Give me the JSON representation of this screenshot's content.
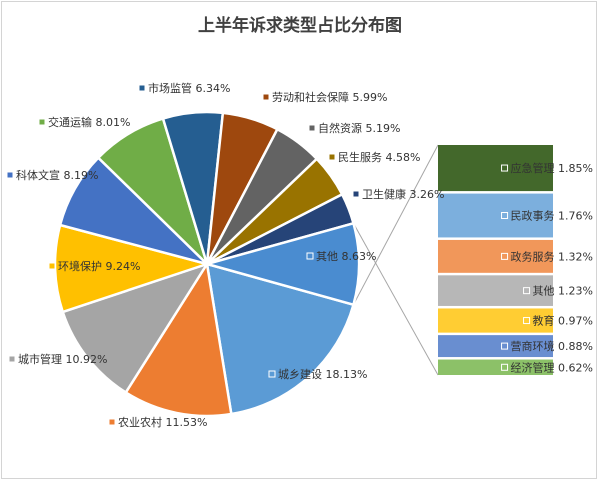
{
  "chart_data": {
    "type": "pie",
    "subtype": "bar-of-pie",
    "title": "上半年诉求类型占比分布图",
    "legend_placement": "labels on slices",
    "slices": [
      {
        "label": "城乡建设",
        "percent_text": "18.13%",
        "value": 18.13,
        "color": "#5b9bd5"
      },
      {
        "label": "农业农村",
        "percent_text": "11.53%",
        "value": 11.53,
        "color": "#ed7d31"
      },
      {
        "label": "城市管理",
        "percent_text": "10.92%",
        "value": 10.92,
        "color": "#a5a5a5"
      },
      {
        "label": "环境保护",
        "percent_text": "9.24%",
        "value": 9.24,
        "color": "#ffc000"
      },
      {
        "label": "科体文宣",
        "percent_text": "8.19%",
        "value": 8.19,
        "color": "#4472c4"
      },
      {
        "label": "交通运输",
        "percent_text": "8.01%",
        "value": 8.01,
        "color": "#70ad47"
      },
      {
        "label": "市场监管",
        "percent_text": "6.34%",
        "value": 6.34,
        "color": "#255e91"
      },
      {
        "label": "劳动和社会保障",
        "percent_text": "5.99%",
        "value": 5.99,
        "color": "#9e480e"
      },
      {
        "label": "自然资源",
        "percent_text": "5.19%",
        "value": 5.19,
        "color": "#636363"
      },
      {
        "label": "民生服务",
        "percent_text": "4.58%",
        "value": 4.58,
        "color": "#997300"
      },
      {
        "label": "卫生健康",
        "percent_text": "3.26%",
        "value": 3.26,
        "color": "#264478"
      },
      {
        "label": "其他",
        "percent_text": "8.63%",
        "value": 8.63,
        "color": "#4a8cd0"
      }
    ],
    "breakdown": [
      {
        "label": "应急管理",
        "percent_text": "1.85%",
        "value": 1.85,
        "color": "#43682b"
      },
      {
        "label": "民政事务",
        "percent_text": "1.76%",
        "value": 1.76,
        "color": "#7cafdd"
      },
      {
        "label": "政务服务",
        "percent_text": "1.32%",
        "value": 1.32,
        "color": "#f1975a"
      },
      {
        "label": "其他",
        "percent_text": "1.23%",
        "value": 1.23,
        "color": "#b7b7b7"
      },
      {
        "label": "教育",
        "percent_text": "0.97%",
        "value": 0.97,
        "color": "#ffcd33"
      },
      {
        "label": "营商环境",
        "percent_text": "0.88%",
        "value": 0.88,
        "color": "#698ed0"
      },
      {
        "label": "经济管理",
        "percent_text": "0.62%",
        "value": 0.62,
        "color": "#8cc168"
      }
    ]
  }
}
